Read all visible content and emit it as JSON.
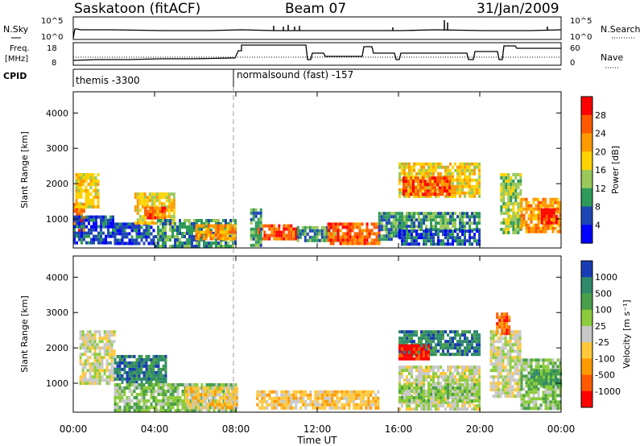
{
  "header": {
    "station": "Saskatoon (fitACF)",
    "beam": "Beam 07",
    "date": "31/Jan/2009"
  },
  "top_panels": {
    "nsky_label": "N.Sky",
    "nsearch_label": "N.Search",
    "nsky_ticks": [
      "10^5",
      "10^0"
    ],
    "nsky_right_ticks": [
      "10^5",
      "10^0"
    ],
    "freq_label_1": "Freq.",
    "freq_label_2": "[MHz]",
    "freq_ticks": [
      "18",
      "8"
    ],
    "nave_label": "Nave",
    "nave_ticks": [
      "60",
      "0"
    ],
    "cpid_label": "CPID",
    "cpid_entries": [
      {
        "start_hr": 0,
        "text": "themis -3300"
      },
      {
        "start_hr": 8,
        "text": "normalsound (fast) -157"
      }
    ]
  },
  "chart_data": [
    {
      "type": "heatmap",
      "name": "power",
      "ylabel": "Slant Range [km]",
      "yticks": [
        1000,
        2000,
        3000,
        4000
      ],
      "ylim": [
        180,
        4600
      ],
      "xlim": [
        0,
        24
      ],
      "colorbar_label": "Power [dB]",
      "colorbar_ticks": [
        "28",
        "24",
        "20",
        "16",
        "12",
        "8",
        "4"
      ],
      "colors": [
        "#ff0000",
        "#ff5a00",
        "#ff9a00",
        "#ffd200",
        "#9ac85a",
        "#2e9a5a",
        "#1e46b4",
        "#0000ff"
      ],
      "regions": [
        {
          "t0": 0.0,
          "t1": 0.5,
          "r0": 650,
          "r1": 1450,
          "level": 1
        },
        {
          "t0": 0.1,
          "t1": 1.2,
          "r0": 1300,
          "r1": 2300,
          "level": 3
        },
        {
          "t0": 0.0,
          "t1": 2.0,
          "r0": 350,
          "r1": 1100,
          "level": 6
        },
        {
          "t0": 2.0,
          "t1": 4.0,
          "r0": 350,
          "r1": 900,
          "level": 6
        },
        {
          "t0": 3.0,
          "t1": 5.0,
          "r0": 900,
          "r1": 1750,
          "level": 3
        },
        {
          "t0": 3.5,
          "t1": 4.5,
          "r0": 1000,
          "r1": 1350,
          "level": 1
        },
        {
          "t0": 4.0,
          "t1": 8.0,
          "r0": 250,
          "r1": 1000,
          "level": 5
        },
        {
          "t0": 6.0,
          "t1": 8.0,
          "r0": 400,
          "r1": 850,
          "level": 2
        },
        {
          "t0": 9.0,
          "t1": 11.0,
          "r0": 400,
          "r1": 850,
          "level": 1
        },
        {
          "t0": 8.7,
          "t1": 9.2,
          "r0": 250,
          "r1": 1300,
          "level": 5
        },
        {
          "t0": 11.0,
          "t1": 13.0,
          "r0": 350,
          "r1": 800,
          "level": 5
        },
        {
          "t0": 12.5,
          "t1": 15.0,
          "r0": 300,
          "r1": 900,
          "level": 1
        },
        {
          "t0": 15.0,
          "t1": 16.0,
          "r0": 400,
          "r1": 1200,
          "level": 5
        },
        {
          "t0": 16.0,
          "t1": 20.0,
          "r0": 1600,
          "r1": 2600,
          "level": 3
        },
        {
          "t0": 16.2,
          "t1": 18.5,
          "r0": 1700,
          "r1": 2200,
          "level": 1
        },
        {
          "t0": 16.0,
          "t1": 20.0,
          "r0": 700,
          "r1": 1200,
          "level": 5
        },
        {
          "t0": 16.0,
          "t1": 20.0,
          "r0": 300,
          "r1": 700,
          "level": 6
        },
        {
          "t0": 21.0,
          "t1": 22.0,
          "r0": 600,
          "r1": 2300,
          "level": 4
        },
        {
          "t0": 22.0,
          "t1": 24.0,
          "r0": 600,
          "r1": 1600,
          "level": 2
        },
        {
          "t0": 23.0,
          "t1": 23.8,
          "r0": 850,
          "r1": 1300,
          "level": 0
        }
      ]
    },
    {
      "type": "heatmap",
      "name": "velocity",
      "ylabel": "Slant Range [km]",
      "yticks": [
        1000,
        2000,
        3000,
        4000
      ],
      "ylim": [
        180,
        4600
      ],
      "xlim": [
        0,
        24
      ],
      "xticks": [
        "00:00",
        "04:00",
        "08:00",
        "12:00",
        "16:00",
        "20:00",
        "00:00"
      ],
      "xlabel": "Time UT",
      "colorbar_label": "Velocity [m s⁻¹]",
      "colorbar_ticks": [
        "1000",
        "500",
        "100",
        "25",
        "-25",
        "-100",
        "-500",
        "-1000"
      ],
      "colors": [
        "#1a3cb4",
        "#2e8a6a",
        "#4aa04a",
        "#8ccc3c",
        "#c8c8c8",
        "#ffc83c",
        "#ff9a00",
        "#ff5a00",
        "#ff0000"
      ],
      "regions": [
        {
          "t0": 0.3,
          "t1": 2.0,
          "r0": 1000,
          "r1": 2500,
          "level": 4
        },
        {
          "t0": 2.0,
          "t1": 4.5,
          "r0": 1000,
          "r1": 1800,
          "level": 1
        },
        {
          "t0": 2.0,
          "t1": 8.0,
          "r0": 250,
          "r1": 1000,
          "level": 3
        },
        {
          "t0": 5.5,
          "t1": 8.0,
          "r0": 300,
          "r1": 900,
          "level": 5
        },
        {
          "t0": 9.0,
          "t1": 15.0,
          "r0": 300,
          "r1": 800,
          "level": 5
        },
        {
          "t0": 16.0,
          "t1": 20.0,
          "r0": 1800,
          "r1": 2500,
          "level": 1
        },
        {
          "t0": 16.0,
          "t1": 17.5,
          "r0": 1700,
          "r1": 2100,
          "level": 8
        },
        {
          "t0": 16.0,
          "t1": 20.0,
          "r0": 250,
          "r1": 1500,
          "level": 4
        },
        {
          "t0": 16.0,
          "t1": 20.0,
          "r0": 500,
          "r1": 1000,
          "level": 3
        },
        {
          "t0": 20.5,
          "t1": 22.0,
          "r0": 600,
          "r1": 2500,
          "level": 4
        },
        {
          "t0": 20.8,
          "t1": 21.4,
          "r0": 2400,
          "r1": 3000,
          "level": 7
        },
        {
          "t0": 22.0,
          "t1": 24.0,
          "r0": 300,
          "r1": 1700,
          "level": 3
        },
        {
          "t0": 22.5,
          "t1": 24.0,
          "r0": 900,
          "r1": 1400,
          "level": 2
        }
      ]
    }
  ]
}
